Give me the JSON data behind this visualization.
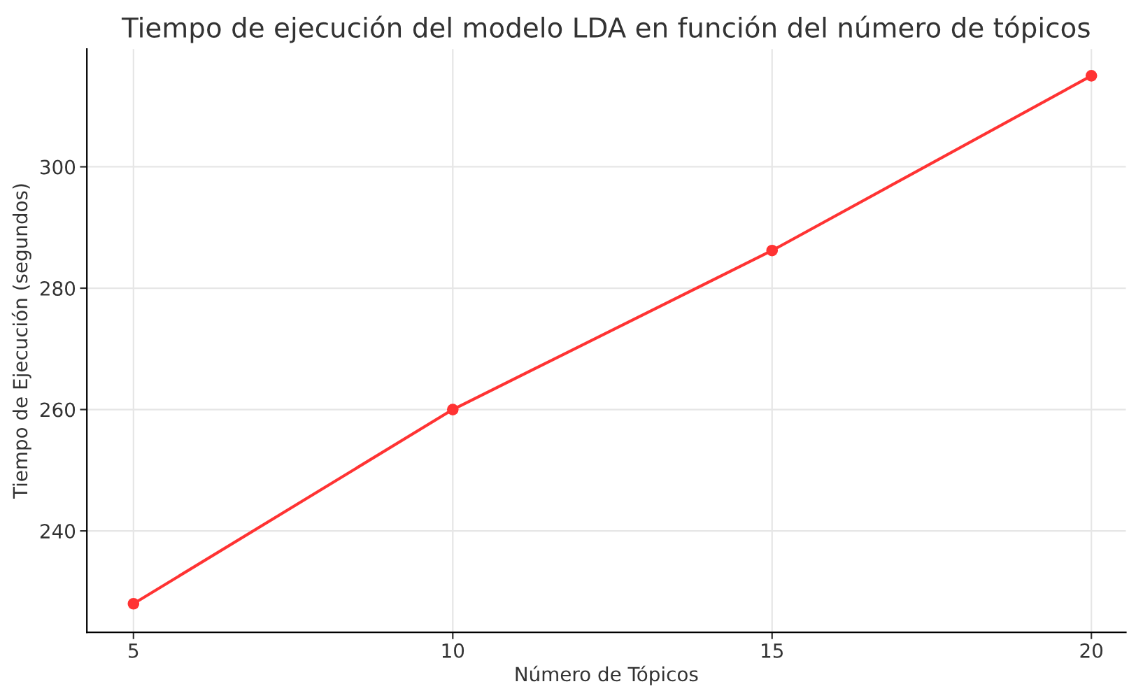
{
  "chart_data": {
    "type": "line",
    "title": "Tiempo de ejecución del modelo LDA en función del número de tópicos",
    "xlabel": "Número de Tópicos",
    "ylabel": "Tiempo de Ejecución (segundos)",
    "x": [
      5,
      10,
      15,
      20
    ],
    "series": [
      {
        "color": "#ff3333",
        "values": [
          228,
          260,
          286.2,
          315
        ]
      }
    ],
    "xlim": [
      4.27,
      20.54
    ],
    "ylim": [
      223.3,
      319.4
    ],
    "xticks": [
      5,
      10,
      15,
      20
    ],
    "yticks": [
      240,
      260,
      280,
      300
    ],
    "grid": true,
    "marker": "circle",
    "line_style": "solid"
  }
}
